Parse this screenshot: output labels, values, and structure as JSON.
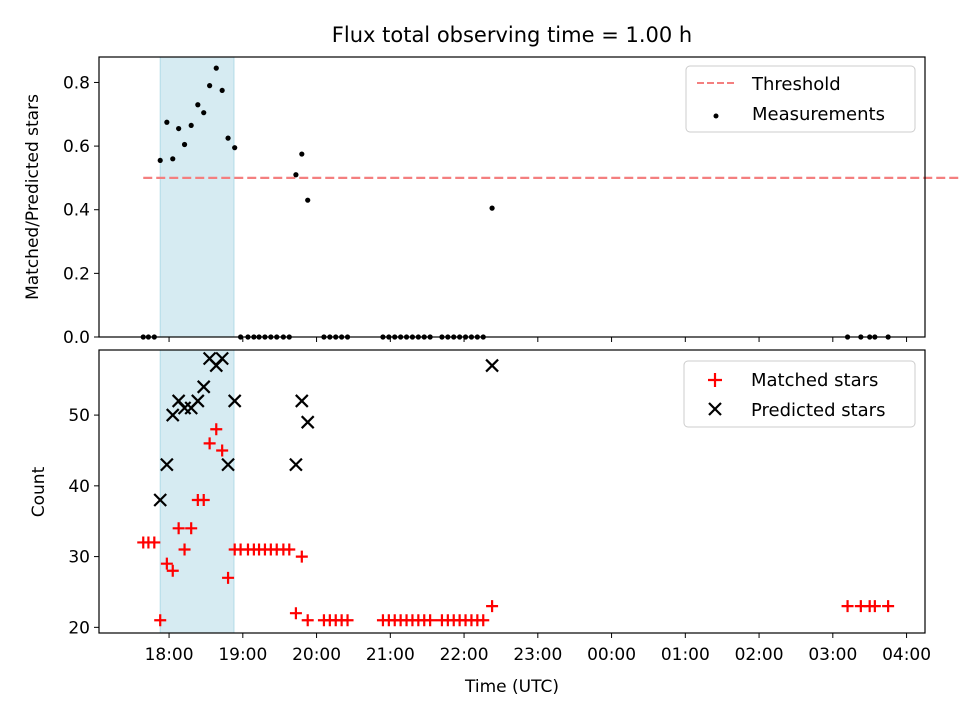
{
  "chart_data": [
    {
      "type": "scatter",
      "title": "Flux total observing time = 1.00 h",
      "xlabel": "",
      "ylabel": "Matched/Predicted stars",
      "xlim": [
        17.05,
        28.25
      ],
      "ylim": [
        0,
        0.88
      ],
      "x_ticks": [
        {
          "value": 18,
          "label": "18:00"
        },
        {
          "value": 19,
          "label": "19:00"
        },
        {
          "value": 20,
          "label": "20:00"
        },
        {
          "value": 21,
          "label": "21:00"
        },
        {
          "value": 22,
          "label": "22:00"
        },
        {
          "value": 23,
          "label": "23:00"
        },
        {
          "value": 24,
          "label": "00:00"
        },
        {
          "value": 25,
          "label": "01:00"
        },
        {
          "value": 26,
          "label": "02:00"
        },
        {
          "value": 27,
          "label": "03:00"
        },
        {
          "value": 28,
          "label": "04:00"
        }
      ],
      "y_ticks": [
        0.0,
        0.2,
        0.4,
        0.6,
        0.8
      ],
      "y_tick_labels": [
        "0.0",
        "0.2",
        "0.4",
        "0.6",
        "0.8"
      ],
      "shaded_interval": [
        17.88,
        18.88
      ],
      "threshold": {
        "name": "Threshold",
        "value": 0.5,
        "x_range": [
          17.65,
          28.8
        ],
        "color": "#f47f7f"
      },
      "legend": {
        "placement": "top-right",
        "entries": [
          "Threshold",
          "Measurements"
        ]
      },
      "series": [
        {
          "name": "Measurements",
          "color": "#000000",
          "marker": "dot",
          "x": [
            17.88,
            17.97,
            18.05,
            18.13,
            18.21,
            18.3,
            18.39,
            18.47,
            18.55,
            18.64,
            18.72,
            18.8,
            18.89,
            19.72,
            19.8,
            19.88,
            22.38,
            17.65,
            17.72,
            17.8,
            18.97,
            19.07,
            19.15,
            19.22,
            19.3,
            19.38,
            19.46,
            19.55,
            19.63,
            20.1,
            20.18,
            20.26,
            20.34,
            20.42,
            20.9,
            20.98,
            21.06,
            21.14,
            21.22,
            21.3,
            21.38,
            21.46,
            21.54,
            21.7,
            21.78,
            21.86,
            21.94,
            22.02,
            22.1,
            22.18,
            22.26,
            27.2,
            27.38,
            27.5,
            27.57,
            27.75
          ],
          "y": [
            0.555,
            0.675,
            0.56,
            0.655,
            0.605,
            0.665,
            0.73,
            0.705,
            0.79,
            0.845,
            0.775,
            0.625,
            0.595,
            0.51,
            0.575,
            0.43,
            0.405,
            0,
            0,
            0,
            0,
            0,
            0,
            0,
            0,
            0,
            0,
            0,
            0,
            0,
            0,
            0,
            0,
            0,
            0,
            0,
            0,
            0,
            0,
            0,
            0,
            0,
            0,
            0,
            0,
            0,
            0,
            0,
            0,
            0,
            0,
            0,
            0,
            0,
            0,
            0
          ]
        }
      ]
    },
    {
      "type": "scatter",
      "title": "",
      "xlabel": "Time (UTC)",
      "ylabel": "Count",
      "xlim": [
        17.05,
        28.25
      ],
      "ylim": [
        19.2,
        59.2
      ],
      "x_ticks": [
        {
          "value": 18,
          "label": "18:00"
        },
        {
          "value": 19,
          "label": "19:00"
        },
        {
          "value": 20,
          "label": "20:00"
        },
        {
          "value": 21,
          "label": "21:00"
        },
        {
          "value": 22,
          "label": "22:00"
        },
        {
          "value": 23,
          "label": "23:00"
        },
        {
          "value": 24,
          "label": "00:00"
        },
        {
          "value": 25,
          "label": "01:00"
        },
        {
          "value": 26,
          "label": "02:00"
        },
        {
          "value": 27,
          "label": "03:00"
        },
        {
          "value": 28,
          "label": "04:00"
        }
      ],
      "y_ticks": [
        20,
        30,
        40,
        50
      ],
      "y_tick_labels": [
        "20",
        "30",
        "40",
        "50"
      ],
      "shaded_interval": [
        17.88,
        18.88
      ],
      "legend": {
        "placement": "top-right",
        "entries": [
          "Matched stars",
          "Predicted stars"
        ]
      },
      "series": [
        {
          "name": "Matched stars",
          "color": "#ff0000",
          "marker": "plus",
          "x": [
            17.65,
            17.72,
            17.8,
            17.88,
            17.97,
            18.05,
            18.13,
            18.21,
            18.3,
            18.39,
            18.47,
            18.55,
            18.64,
            18.72,
            18.8,
            18.89,
            18.97,
            19.07,
            19.15,
            19.22,
            19.3,
            19.38,
            19.46,
            19.55,
            19.63,
            19.72,
            19.8,
            19.88,
            20.1,
            20.18,
            20.26,
            20.34,
            20.42,
            20.9,
            20.98,
            21.06,
            21.14,
            21.22,
            21.3,
            21.38,
            21.46,
            21.54,
            21.7,
            21.78,
            21.86,
            21.94,
            22.02,
            22.1,
            22.18,
            22.26,
            22.38,
            27.2,
            27.38,
            27.5,
            27.57,
            27.75
          ],
          "y": [
            32,
            32,
            32,
            21,
            29,
            28,
            34,
            31,
            34,
            38,
            38,
            46,
            48,
            45,
            27,
            31,
            31,
            31,
            31,
            31,
            31,
            31,
            31,
            31,
            31,
            22,
            30,
            21,
            21,
            21,
            21,
            21,
            21,
            21,
            21,
            21,
            21,
            21,
            21,
            21,
            21,
            21,
            21,
            21,
            21,
            21,
            21,
            21,
            21,
            21,
            23,
            23,
            23,
            23,
            23,
            23
          ]
        },
        {
          "name": "Predicted stars",
          "color": "#000000",
          "marker": "x",
          "x": [
            17.88,
            17.97,
            18.05,
            18.13,
            18.21,
            18.3,
            18.39,
            18.47,
            18.55,
            18.64,
            18.72,
            18.8,
            18.89,
            19.72,
            19.8,
            19.88,
            22.38
          ],
          "y": [
            38,
            43,
            50,
            52,
            51,
            51,
            52,
            54,
            58,
            57,
            58,
            43,
            52,
            43,
            52,
            49,
            57
          ]
        }
      ]
    }
  ]
}
